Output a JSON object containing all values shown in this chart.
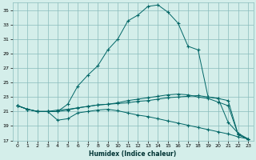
{
  "xlabel": "Humidex (Indice chaleur)",
  "bg_color": "#d4eeea",
  "grid_color": "#88bbbb",
  "line_color": "#006666",
  "xlim": [
    -0.5,
    23.5
  ],
  "ylim": [
    17,
    36
  ],
  "yticks": [
    17,
    19,
    21,
    23,
    25,
    27,
    29,
    31,
    33,
    35
  ],
  "xticks": [
    0,
    1,
    2,
    3,
    4,
    5,
    6,
    7,
    8,
    9,
    10,
    11,
    12,
    13,
    14,
    15,
    16,
    17,
    18,
    19,
    20,
    21,
    22,
    23
  ],
  "series": [
    {
      "x": [
        0,
        1,
        2,
        3,
        4,
        5,
        6,
        7,
        8,
        9,
        10,
        11,
        12,
        13,
        14,
        15,
        16,
        17,
        18,
        19,
        20,
        21,
        22,
        23
      ],
      "y": [
        21.8,
        21.3,
        21.0,
        21.0,
        21.0,
        22.0,
        24.5,
        26.0,
        27.3,
        29.5,
        31.0,
        33.5,
        34.3,
        35.5,
        35.7,
        34.7,
        33.2,
        30.0,
        29.5,
        23.0,
        22.8,
        19.5,
        18.0,
        17.2
      ]
    },
    {
      "x": [
        0,
        1,
        2,
        3,
        4,
        5,
        6,
        7,
        8,
        9,
        10,
        11,
        12,
        13,
        14,
        15,
        16,
        17,
        18,
        19,
        20,
        21,
        22,
        23
      ],
      "y": [
        21.8,
        21.3,
        21.0,
        21.0,
        21.0,
        21.2,
        21.5,
        21.7,
        21.9,
        22.0,
        22.1,
        22.2,
        22.4,
        22.5,
        22.7,
        22.9,
        23.0,
        23.1,
        23.2,
        23.0,
        22.8,
        22.5,
        17.8,
        17.2
      ]
    },
    {
      "x": [
        0,
        1,
        2,
        3,
        4,
        5,
        6,
        7,
        8,
        9,
        10,
        11,
        12,
        13,
        14,
        15,
        16,
        17,
        18,
        19,
        20,
        21,
        22,
        23
      ],
      "y": [
        21.8,
        21.3,
        21.0,
        21.0,
        21.2,
        21.3,
        21.5,
        21.7,
        21.9,
        22.0,
        22.2,
        22.5,
        22.7,
        22.9,
        23.1,
        23.3,
        23.4,
        23.3,
        23.0,
        22.8,
        22.3,
        21.8,
        17.8,
        17.2
      ]
    },
    {
      "x": [
        0,
        1,
        2,
        3,
        4,
        5,
        6,
        7,
        8,
        9,
        10,
        11,
        12,
        13,
        14,
        15,
        16,
        17,
        18,
        19,
        20,
        21,
        22,
        23
      ],
      "y": [
        21.8,
        21.3,
        21.0,
        21.0,
        19.8,
        20.0,
        20.8,
        21.0,
        21.2,
        21.3,
        21.1,
        20.8,
        20.5,
        20.3,
        20.0,
        19.7,
        19.4,
        19.1,
        18.8,
        18.5,
        18.2,
        17.9,
        17.5,
        17.2
      ]
    }
  ]
}
